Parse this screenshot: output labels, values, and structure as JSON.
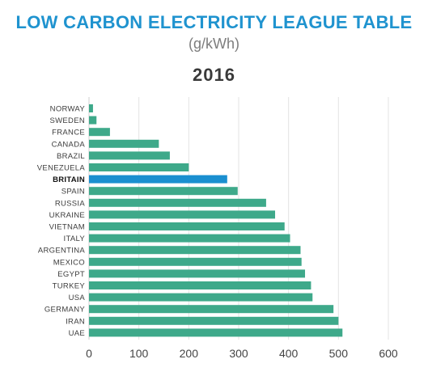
{
  "header": {
    "title": "LOW CARBON ELECTRICITY LEAGUE TABLE",
    "unit": "(g/kWh)",
    "year": "2016"
  },
  "colors": {
    "title": "#1f93cf",
    "bar": "#3ea98a",
    "highlight": "#1a8fd0",
    "grid": "#e3e3e3",
    "axis": "#cfcfcf"
  },
  "chart_data": {
    "type": "bar",
    "orientation": "horizontal",
    "title": "LOW CARBON ELECTRICITY LEAGUE TABLE",
    "subtitle": "(g/kWh)",
    "xlabel": "",
    "ylabel": "",
    "xlim": [
      0,
      600
    ],
    "ticks": [
      0,
      100,
      200,
      300,
      400,
      500,
      600
    ],
    "grid": true,
    "highlight": "BRITAIN",
    "categories": [
      "NORWAY",
      "SWEDEN",
      "FRANCE",
      "CANADA",
      "BRAZIL",
      "VENEZUELA",
      "BRITAIN",
      "SPAIN",
      "RUSSIA",
      "UKRAINE",
      "VIETNAM",
      "ITALY",
      "ARGENTINA",
      "MEXICO",
      "EGYPT",
      "TURKEY",
      "USA",
      "GERMANY",
      "IRAN",
      "UAE"
    ],
    "values": [
      8,
      15,
      42,
      140,
      162,
      200,
      277,
      298,
      355,
      373,
      392,
      403,
      424,
      426,
      433,
      445,
      448,
      490,
      500,
      508
    ]
  }
}
